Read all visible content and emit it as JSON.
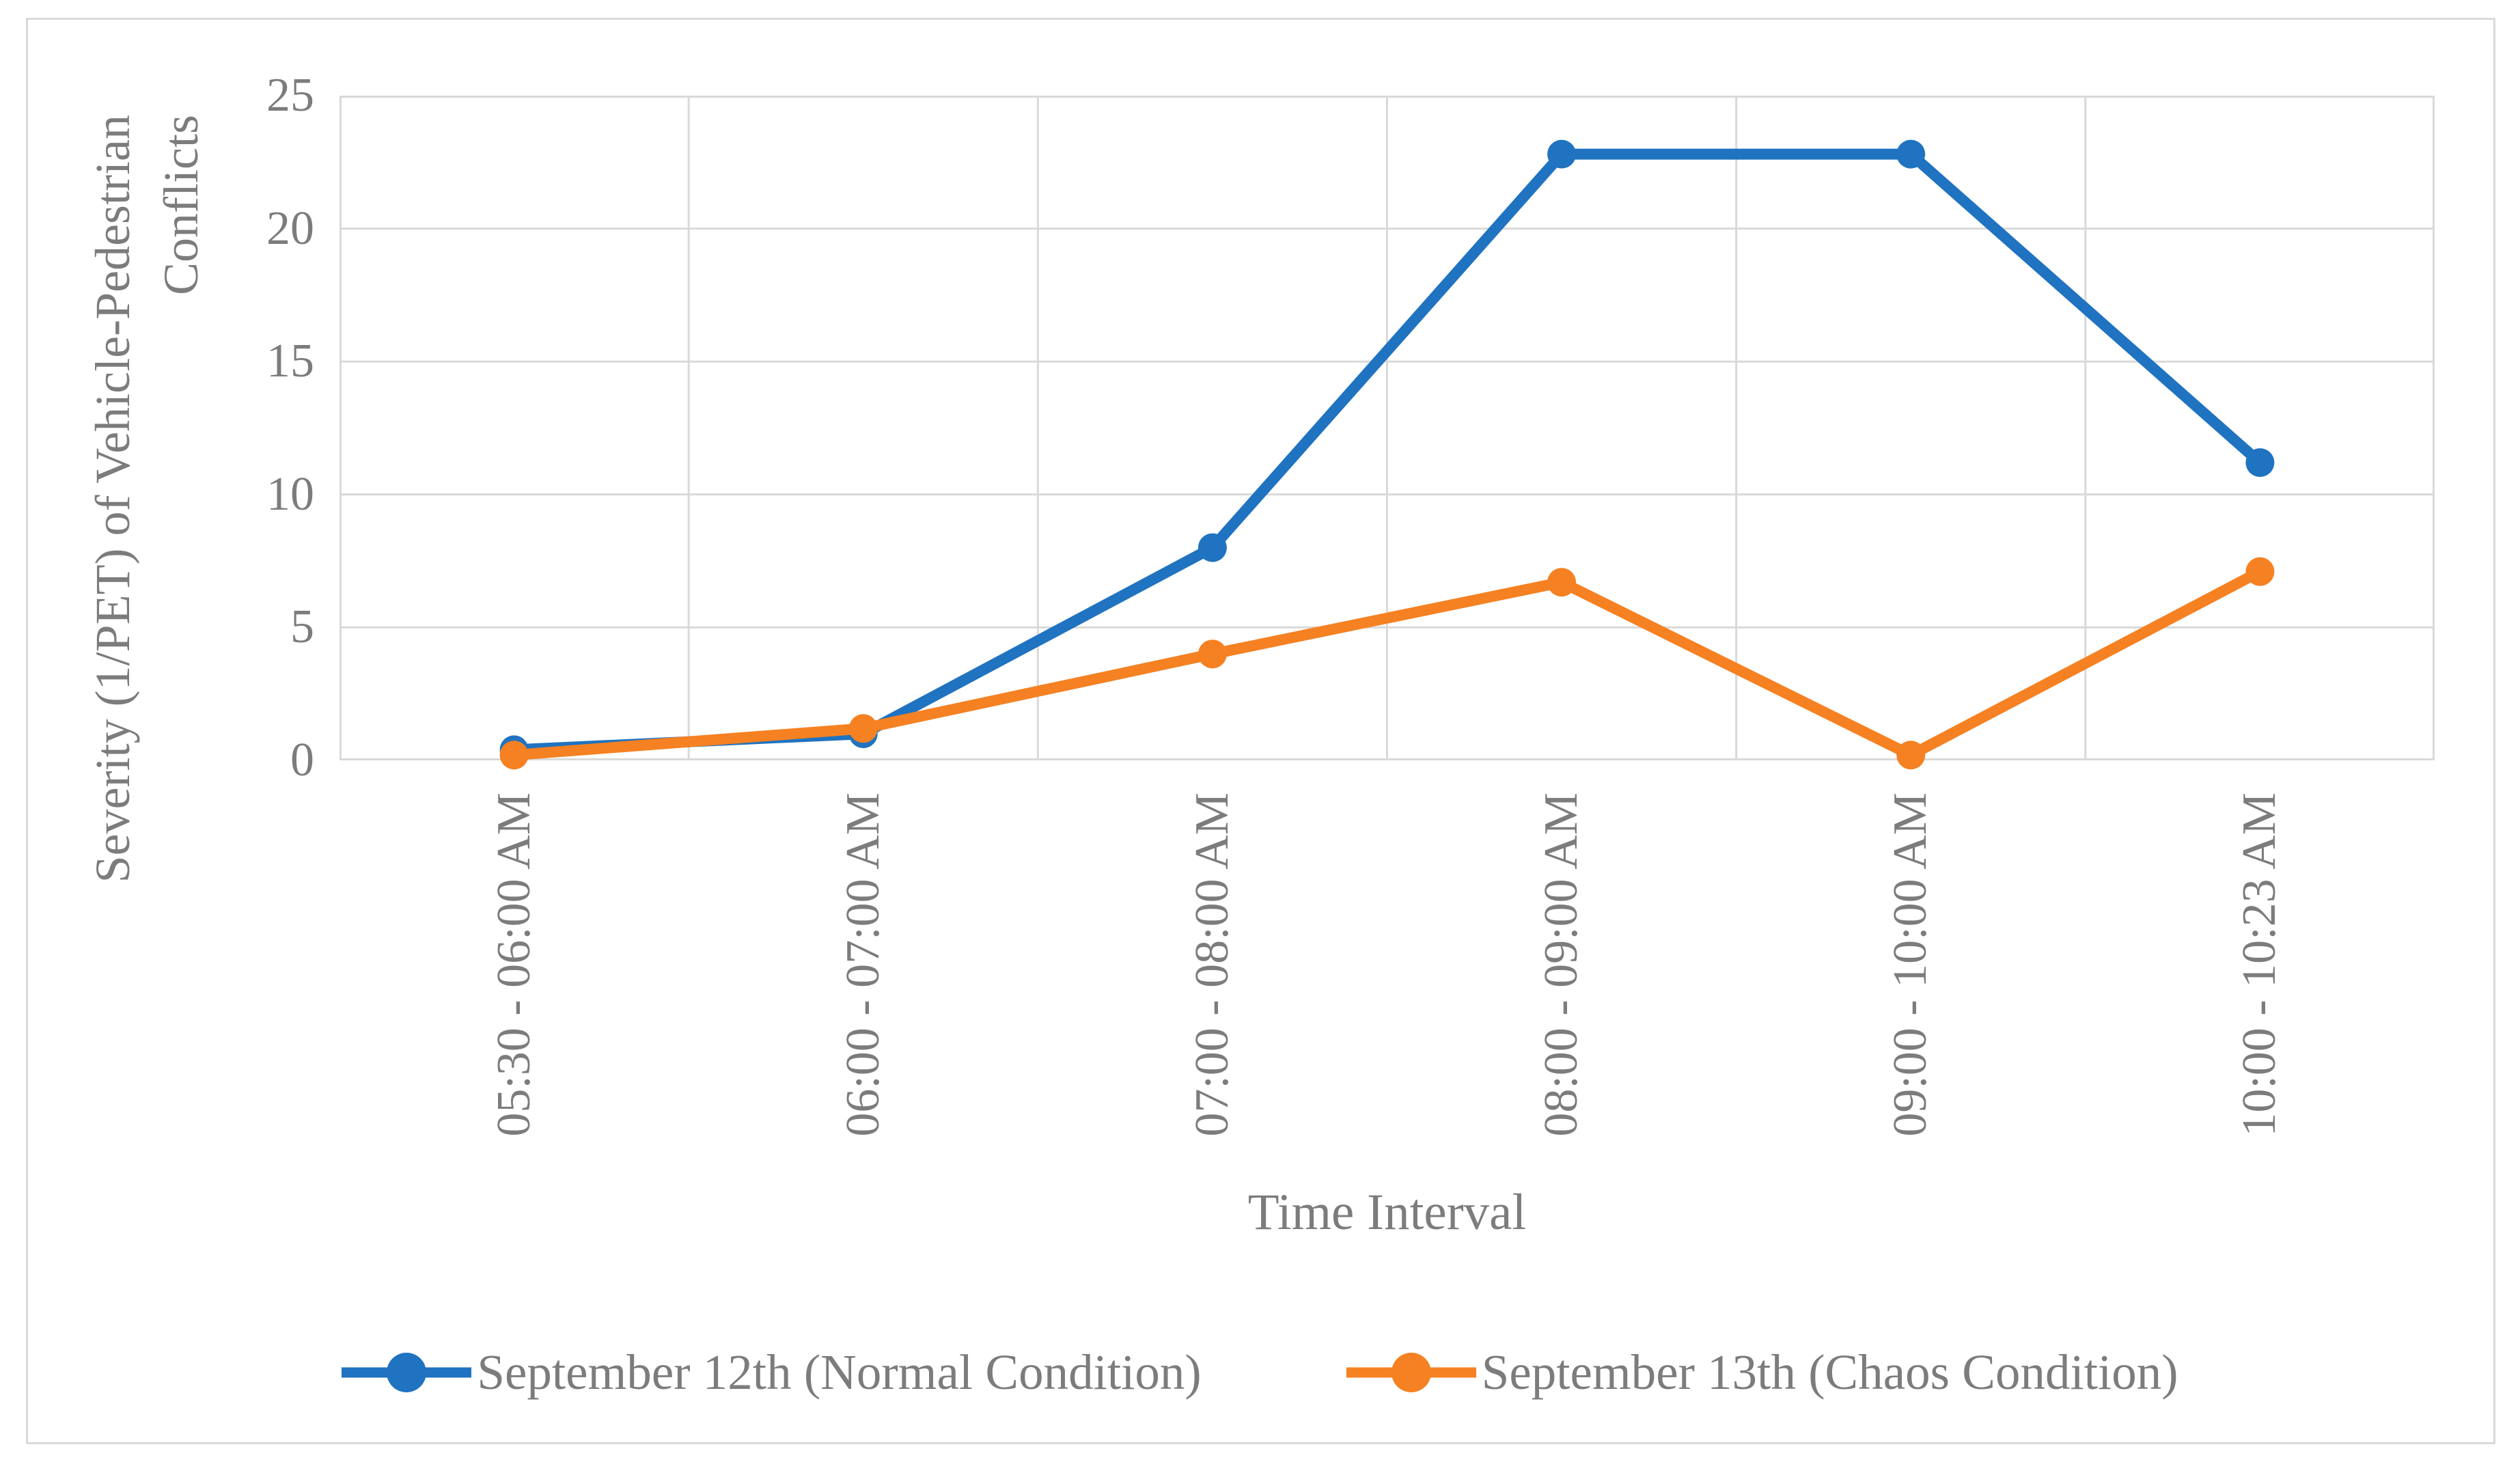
{
  "chart_data": {
    "type": "line",
    "title": "",
    "categories": [
      "05:30 - 06:00 AM",
      "06:00 - 07:00 AM",
      "07:00 - 08:00 AM",
      "08:00 - 09:00 AM",
      "09:00 - 10:00 AM",
      "10:00 - 10:23 AM"
    ],
    "series": [
      {
        "name": "September 12th (Normal Condition)",
        "color": "#1F73C0",
        "values": [
          0.4,
          1.0,
          8.0,
          22.8,
          22.8,
          11.2
        ]
      },
      {
        "name": "September 13th (Chaos Condition)",
        "color": "#F58122",
        "values": [
          0.2,
          1.2,
          4.0,
          6.7,
          0.2,
          7.1
        ]
      }
    ],
    "xlabel": "Time Interval",
    "ylabel": "Severity (1/PET) of Vehicle-Pedestrian\nConflicts",
    "ylim": [
      0,
      25
    ],
    "yticks": [
      0,
      5,
      10,
      15,
      20,
      25
    ],
    "grid": true,
    "legend_position": "bottom",
    "colors": {
      "gridline": "#D9D9D9",
      "axis_text": "#7C7C7C",
      "border": "#D9D9D9",
      "background": "#FFFFFF"
    }
  }
}
